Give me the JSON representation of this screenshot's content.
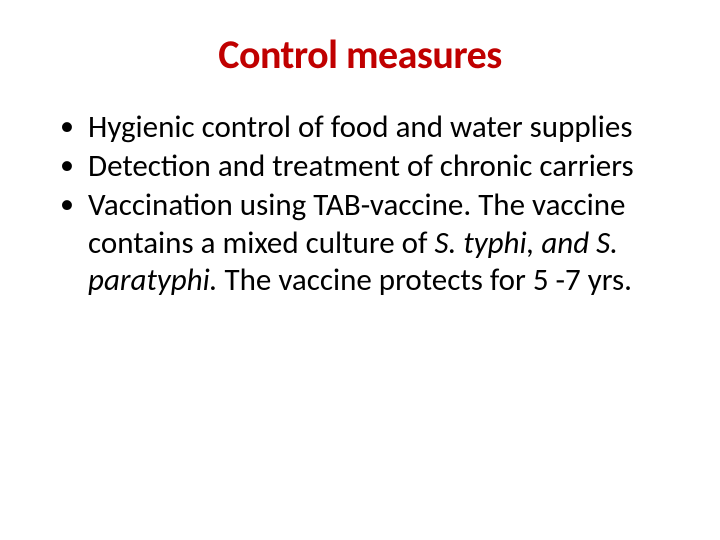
{
  "title": "Control measures",
  "title_color": "#c00000",
  "text_color": "#000000",
  "background_color": "#ffffff",
  "title_fontsize": 40,
  "body_fontsize": 31,
  "bullets": [
    {
      "text": "Hygienic control of food and water supplies"
    },
    {
      "text": "Detection and treatment of chronic carriers"
    },
    {
      "pre": "Vaccination using TAB-vaccine. The vaccine contains a mixed culture of ",
      "italic": "S. typhi, and S. paratyphi.",
      "post": " The vaccine protects for 5 -7 yrs."
    }
  ]
}
